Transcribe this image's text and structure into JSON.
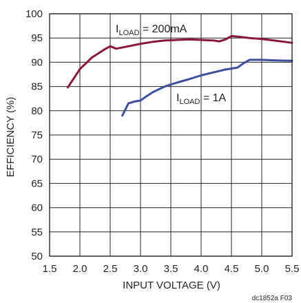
{
  "chart_data": {
    "type": "line",
    "xlabel": "INPUT VOLTAGE (V)",
    "ylabel": "EFFICIENCY (%)",
    "xlim": [
      1.5,
      5.5
    ],
    "ylim": [
      50,
      100
    ],
    "xticks": [
      "1.5",
      "2.0",
      "2.5",
      "3.0",
      "3.5",
      "4.0",
      "4.5",
      "5.0",
      "5.5"
    ],
    "yticks": [
      "50",
      "55",
      "60",
      "65",
      "70",
      "75",
      "80",
      "85",
      "90",
      "95",
      "100"
    ],
    "grid": true,
    "series": [
      {
        "name": "ILOAD = 200mA",
        "label_main": "I",
        "label_sub": "LOAD",
        "label_rest": " = 200mA",
        "color": "#8a1538",
        "points": [
          [
            1.8,
            84.8
          ],
          [
            2.0,
            88.6
          ],
          [
            2.2,
            91.0
          ],
          [
            2.4,
            92.6
          ],
          [
            2.5,
            93.3
          ],
          [
            2.6,
            92.8
          ],
          [
            2.8,
            93.3
          ],
          [
            3.0,
            93.8
          ],
          [
            3.2,
            94.2
          ],
          [
            3.4,
            94.5
          ],
          [
            3.6,
            94.6
          ],
          [
            3.8,
            94.7
          ],
          [
            4.0,
            94.6
          ],
          [
            4.2,
            94.5
          ],
          [
            4.3,
            94.3
          ],
          [
            4.4,
            94.7
          ],
          [
            4.5,
            95.4
          ],
          [
            4.6,
            95.3
          ],
          [
            4.8,
            95.0
          ],
          [
            5.0,
            94.8
          ],
          [
            5.2,
            94.5
          ],
          [
            5.5,
            94.0
          ]
        ]
      },
      {
        "name": "ILOAD = 1A",
        "label_main": "I",
        "label_sub": "LOAD",
        "label_rest": " = 1A",
        "color": "#3c4f9e",
        "points": [
          [
            2.7,
            79.0
          ],
          [
            2.8,
            81.5
          ],
          [
            2.9,
            81.9
          ],
          [
            3.0,
            82.1
          ],
          [
            3.1,
            83.0
          ],
          [
            3.2,
            83.8
          ],
          [
            3.4,
            85.0
          ],
          [
            3.6,
            85.8
          ],
          [
            3.8,
            86.5
          ],
          [
            4.0,
            87.3
          ],
          [
            4.2,
            87.9
          ],
          [
            4.4,
            88.5
          ],
          [
            4.6,
            88.9
          ],
          [
            4.7,
            89.8
          ],
          [
            4.8,
            90.5
          ],
          [
            5.0,
            90.5
          ],
          [
            5.2,
            90.4
          ],
          [
            5.5,
            90.3
          ]
        ]
      }
    ]
  },
  "footer": "dc1852a F03"
}
